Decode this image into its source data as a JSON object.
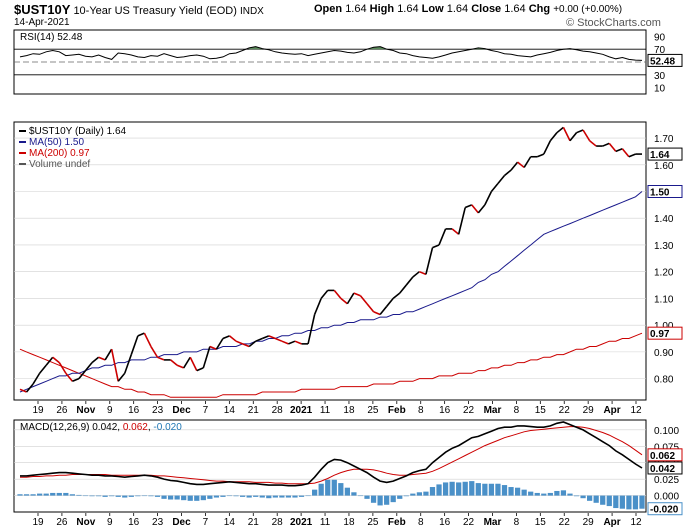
{
  "header": {
    "symbol": "$UST10Y",
    "name": "10-Year US Treasury Yield (EOD)",
    "exchange": "INDX",
    "date": "14-Apr-2021",
    "ohlc": {
      "open_label": "Open",
      "open": "1.64",
      "high_label": "High",
      "high": "1.64",
      "low_label": "Low",
      "low": "1.64",
      "close_label": "Close",
      "close": "1.64",
      "chg_label": "Chg",
      "chg": "+0.00 (+0.00%)"
    },
    "brand": "© StockCharts.com"
  },
  "rsi": {
    "label": "RSI(14) 52.48",
    "ticks": [
      "90",
      "70",
      "52.48",
      "30",
      "10"
    ],
    "value_tag": "52.48"
  },
  "price": {
    "legend": [
      {
        "text": "$UST10Y (Daily) 1.64",
        "color": "#000000"
      },
      {
        "text": "MA(50) 1.50",
        "color": "#1a1a8c"
      },
      {
        "text": "MA(200) 0.97",
        "color": "#cc0000"
      },
      {
        "text": "Volume undef",
        "color": "#555555"
      }
    ],
    "ticks": [
      "1.70",
      "1.60",
      "1.50",
      "1.40",
      "1.30",
      "1.20",
      "1.10",
      "1.00",
      "0.90",
      "0.80"
    ],
    "tags": {
      "close": "1.64",
      "ma50": "1.50",
      "ma200": "0.97"
    }
  },
  "macd": {
    "label_parts": [
      {
        "text": "MACD(12,26,9) 0.042, ",
        "color": "#000000"
      },
      {
        "text": "0.062",
        "color": "#cc0000"
      },
      {
        "text": ", ",
        "color": "#000000"
      },
      {
        "text": "-0.020",
        "color": "#1f77b4"
      }
    ],
    "ticks": [
      "0.100",
      "0.075",
      "0.050",
      "0.025",
      "0.000"
    ],
    "tags": {
      "signal": "0.062",
      "macd": "0.042",
      "hist": "-0.020"
    }
  },
  "xaxis": {
    "labels": [
      {
        "t": "19",
        "b": false
      },
      {
        "t": "26",
        "b": false
      },
      {
        "t": "Nov",
        "b": true
      },
      {
        "t": "9",
        "b": false
      },
      {
        "t": "16",
        "b": false
      },
      {
        "t": "23",
        "b": false
      },
      {
        "t": "Dec",
        "b": true
      },
      {
        "t": "7",
        "b": false
      },
      {
        "t": "14",
        "b": false
      },
      {
        "t": "21",
        "b": false
      },
      {
        "t": "28",
        "b": false
      },
      {
        "t": "2021",
        "b": true
      },
      {
        "t": "11",
        "b": false
      },
      {
        "t": "18",
        "b": false
      },
      {
        "t": "25",
        "b": false
      },
      {
        "t": "Feb",
        "b": true
      },
      {
        "t": "8",
        "b": false
      },
      {
        "t": "16",
        "b": false
      },
      {
        "t": "22",
        "b": false
      },
      {
        "t": "Mar",
        "b": true
      },
      {
        "t": "8",
        "b": false
      },
      {
        "t": "15",
        "b": false
      },
      {
        "t": "22",
        "b": false
      },
      {
        "t": "29",
        "b": false
      },
      {
        "t": "Apr",
        "b": true
      },
      {
        "t": "12",
        "b": false
      }
    ]
  },
  "colors": {
    "price": "#000000",
    "price_down": "#cc0000",
    "ma50": "#1a1a8c",
    "ma200": "#cc0000",
    "rsi_fill": "#5a8a5a",
    "hist": "#4a90c8",
    "grid": "#d0d0d0"
  },
  "chart_data": [
    {
      "type": "line",
      "title": "RSI(14)",
      "ylim": [
        0,
        100
      ],
      "series": [
        {
          "name": "RSI(14)",
          "values": [
            58,
            60,
            63,
            62,
            66,
            68,
            66,
            60,
            61,
            62,
            59,
            58,
            61,
            57,
            54,
            64,
            63,
            61,
            58,
            57,
            60,
            59,
            63,
            60,
            57,
            58,
            60,
            61,
            59,
            55,
            56,
            58,
            63,
            64,
            68,
            72,
            74,
            71,
            69,
            66,
            64,
            63,
            62,
            63,
            60,
            62,
            64,
            66,
            68,
            67,
            65,
            64,
            66,
            70,
            73,
            74,
            70,
            68,
            64,
            63,
            60,
            58,
            57,
            56,
            58,
            61,
            64,
            66,
            68,
            70,
            72,
            71,
            68,
            66,
            63,
            62,
            60,
            59,
            58,
            61,
            63,
            65,
            68,
            70,
            71,
            69,
            67,
            66,
            64,
            62,
            58,
            55,
            57,
            54,
            53,
            52.48
          ]
        }
      ]
    },
    {
      "type": "line",
      "title": "$UST10Y (Daily) 1.64",
      "ylim": [
        0.72,
        1.76
      ],
      "series": [
        {
          "name": "$UST10Y (Daily) 1.64",
          "values": [
            0.76,
            0.75,
            0.78,
            0.82,
            0.85,
            0.88,
            0.86,
            0.82,
            0.79,
            0.8,
            0.83,
            0.86,
            0.88,
            0.87,
            0.91,
            0.79,
            0.82,
            0.89,
            0.96,
            0.97,
            0.92,
            0.88,
            0.87,
            0.87,
            0.85,
            0.84,
            0.88,
            0.83,
            0.84,
            0.92,
            0.91,
            0.95,
            0.96,
            0.94,
            0.93,
            0.92,
            0.94,
            0.95,
            0.96,
            0.95,
            0.94,
            0.93,
            0.94,
            0.93,
            0.93,
            1.04,
            1.1,
            1.13,
            1.13,
            1.1,
            1.08,
            1.12,
            1.11,
            1.08,
            1.05,
            1.04,
            1.07,
            1.1,
            1.12,
            1.15,
            1.18,
            1.2,
            1.19,
            1.29,
            1.3,
            1.36,
            1.36,
            1.34,
            1.44,
            1.45,
            1.42,
            1.45,
            1.5,
            1.53,
            1.56,
            1.58,
            1.61,
            1.59,
            1.63,
            1.63,
            1.64,
            1.69,
            1.72,
            1.74,
            1.69,
            1.72,
            1.73,
            1.69,
            1.67,
            1.67,
            1.68,
            1.65,
            1.66,
            1.63,
            1.64,
            1.64
          ]
        },
        {
          "name": "MA(50) 1.50",
          "values": [
            0.75,
            0.76,
            0.77,
            0.78,
            0.79,
            0.8,
            0.81,
            0.81,
            0.82,
            0.82,
            0.83,
            0.84,
            0.84,
            0.85,
            0.85,
            0.86,
            0.86,
            0.87,
            0.87,
            0.87,
            0.88,
            0.88,
            0.89,
            0.89,
            0.89,
            0.9,
            0.9,
            0.9,
            0.91,
            0.91,
            0.91,
            0.92,
            0.92,
            0.92,
            0.93,
            0.93,
            0.94,
            0.94,
            0.95,
            0.95,
            0.96,
            0.96,
            0.97,
            0.97,
            0.98,
            0.98,
            0.99,
            0.99,
            1.0,
            1.0,
            1.01,
            1.01,
            1.02,
            1.02,
            1.02,
            1.03,
            1.03,
            1.04,
            1.04,
            1.05,
            1.05,
            1.06,
            1.07,
            1.08,
            1.09,
            1.1,
            1.11,
            1.12,
            1.13,
            1.14,
            1.16,
            1.17,
            1.19,
            1.2,
            1.22,
            1.24,
            1.26,
            1.28,
            1.3,
            1.32,
            1.34,
            1.35,
            1.36,
            1.37,
            1.38,
            1.39,
            1.4,
            1.41,
            1.42,
            1.43,
            1.44,
            1.45,
            1.46,
            1.47,
            1.48,
            1.5
          ]
        },
        {
          "name": "MA(200) 0.97",
          "values": [
            0.91,
            0.9,
            0.89,
            0.88,
            0.87,
            0.86,
            0.85,
            0.84,
            0.83,
            0.82,
            0.81,
            0.8,
            0.79,
            0.78,
            0.77,
            0.77,
            0.76,
            0.76,
            0.75,
            0.75,
            0.74,
            0.74,
            0.74,
            0.73,
            0.73,
            0.73,
            0.73,
            0.73,
            0.73,
            0.73,
            0.73,
            0.74,
            0.74,
            0.74,
            0.74,
            0.74,
            0.74,
            0.75,
            0.75,
            0.75,
            0.75,
            0.75,
            0.75,
            0.76,
            0.76,
            0.76,
            0.76,
            0.76,
            0.76,
            0.77,
            0.77,
            0.77,
            0.77,
            0.77,
            0.78,
            0.78,
            0.78,
            0.78,
            0.79,
            0.79,
            0.79,
            0.8,
            0.8,
            0.8,
            0.81,
            0.81,
            0.81,
            0.82,
            0.82,
            0.82,
            0.83,
            0.83,
            0.84,
            0.84,
            0.85,
            0.85,
            0.86,
            0.86,
            0.87,
            0.87,
            0.88,
            0.88,
            0.89,
            0.89,
            0.9,
            0.91,
            0.91,
            0.92,
            0.92,
            0.93,
            0.94,
            0.94,
            0.95,
            0.95,
            0.96,
            0.97
          ]
        }
      ]
    },
    {
      "type": "line",
      "title": "MACD(12,26,9)",
      "ylim": [
        -0.025,
        0.115
      ],
      "series": [
        {
          "name": "MACD",
          "values": [
            0.03,
            0.03,
            0.031,
            0.032,
            0.033,
            0.034,
            0.035,
            0.035,
            0.034,
            0.033,
            0.032,
            0.031,
            0.031,
            0.03,
            0.03,
            0.029,
            0.028,
            0.029,
            0.03,
            0.031,
            0.03,
            0.028,
            0.025,
            0.023,
            0.022,
            0.02,
            0.018,
            0.017,
            0.017,
            0.018,
            0.019,
            0.02,
            0.021,
            0.02,
            0.019,
            0.018,
            0.018,
            0.017,
            0.016,
            0.016,
            0.016,
            0.015,
            0.015,
            0.016,
            0.018,
            0.028,
            0.04,
            0.05,
            0.055,
            0.054,
            0.05,
            0.045,
            0.04,
            0.035,
            0.028,
            0.022,
            0.02,
            0.022,
            0.026,
            0.03,
            0.035,
            0.038,
            0.04,
            0.05,
            0.058,
            0.066,
            0.072,
            0.076,
            0.082,
            0.088,
            0.09,
            0.094,
            0.098,
            0.102,
            0.104,
            0.104,
            0.106,
            0.106,
            0.105,
            0.104,
            0.104,
            0.106,
            0.11,
            0.112,
            0.108,
            0.104,
            0.1,
            0.094,
            0.088,
            0.082,
            0.076,
            0.068,
            0.062,
            0.055,
            0.048,
            0.042
          ]
        },
        {
          "name": "Signal",
          "values": [
            0.028,
            0.028,
            0.029,
            0.029,
            0.03,
            0.03,
            0.031,
            0.031,
            0.032,
            0.032,
            0.032,
            0.032,
            0.032,
            0.032,
            0.031,
            0.031,
            0.031,
            0.031,
            0.031,
            0.031,
            0.031,
            0.03,
            0.03,
            0.029,
            0.028,
            0.027,
            0.026,
            0.025,
            0.024,
            0.023,
            0.022,
            0.022,
            0.021,
            0.021,
            0.021,
            0.021,
            0.02,
            0.02,
            0.02,
            0.019,
            0.019,
            0.018,
            0.018,
            0.018,
            0.018,
            0.019,
            0.022,
            0.026,
            0.031,
            0.035,
            0.038,
            0.04,
            0.04,
            0.04,
            0.039,
            0.037,
            0.034,
            0.032,
            0.031,
            0.031,
            0.032,
            0.033,
            0.034,
            0.037,
            0.041,
            0.046,
            0.051,
            0.056,
            0.061,
            0.066,
            0.071,
            0.076,
            0.08,
            0.084,
            0.088,
            0.091,
            0.094,
            0.097,
            0.099,
            0.1,
            0.101,
            0.102,
            0.103,
            0.104,
            0.105,
            0.105,
            0.104,
            0.102,
            0.099,
            0.096,
            0.092,
            0.087,
            0.082,
            0.076,
            0.069,
            0.062
          ]
        }
      ]
    }
  ]
}
